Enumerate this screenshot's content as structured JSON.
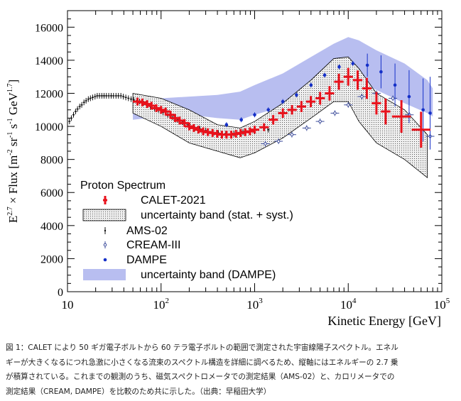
{
  "chart_data": {
    "type": "scatter",
    "x_scale": "log",
    "xlim": [
      10,
      100000
    ],
    "ylim": [
      0,
      17000
    ],
    "xlabel": "Kinetic Energy [GeV]",
    "ylabel": "E^2.7 × Flux [m^-2 sr^-1 s^-1 GeV^1.7]",
    "ylabel_parts": {
      "a": "E",
      "a_sup": "2.7",
      "b": " × Flux [m",
      "b_sup": "-2",
      "c": " sr",
      "c_sup": "-1",
      "d": " s",
      "d_sup": "-1",
      "e": " GeV",
      "e_sup": "1.7",
      "f": "]"
    },
    "x_ticks": [
      {
        "value": 10,
        "base": "10",
        "exp": ""
      },
      {
        "value": 100,
        "base": "10",
        "exp": "2"
      },
      {
        "value": 1000,
        "base": "10",
        "exp": "3"
      },
      {
        "value": 10000,
        "base": "10",
        "exp": "4"
      },
      {
        "value": 100000,
        "base": "10",
        "exp": "5"
      }
    ],
    "y_ticks": [
      0,
      2000,
      4000,
      6000,
      8000,
      10000,
      12000,
      14000,
      16000
    ],
    "legend": {
      "title": "Proton Spectrum",
      "placement": "bottom-left",
      "entries": [
        "CALET-2021",
        "uncertainty band (stat. + syst.)",
        "AMS-02",
        "CREAM-III",
        "DAMPE",
        "uncertainty band (DAMPE)"
      ]
    },
    "colors": {
      "calet": "#e8121c",
      "calet_band": "#d8d8d8",
      "ams": "#111111",
      "cream": "#3a4a9a",
      "dampe": "#1530c8",
      "dampe_band": "#b8bef0"
    },
    "dampe_band": {
      "x": [
        50,
        100,
        200,
        400,
        700,
        1000,
        2000,
        4000,
        7000,
        10000,
        13000,
        20000,
        40000,
        70000,
        80000
      ],
      "upper": [
        11300,
        11700,
        11800,
        11900,
        12100,
        12500,
        13200,
        14200,
        15000,
        15400,
        15200,
        14600,
        13800,
        12800,
        12300
      ],
      "lower": [
        10400,
        10600,
        10700,
        10500,
        10400,
        10700,
        11200,
        12100,
        12800,
        13000,
        12700,
        12200,
        11400,
        10800,
        10600
      ]
    },
    "calet_band": {
      "x": [
        50,
        100,
        200,
        400,
        700,
        1000,
        2000,
        4000,
        7000,
        10000,
        13000,
        20000,
        40000,
        70000
      ],
      "upper": [
        12000,
        11700,
        11000,
        10100,
        9900,
        10300,
        11400,
        12800,
        14100,
        14200,
        13500,
        12000,
        11000,
        9500
      ],
      "lower": [
        10800,
        10000,
        9000,
        8500,
        8100,
        8400,
        9300,
        10500,
        11500,
        11500,
        10300,
        9000,
        8000,
        6900
      ]
    },
    "series": [
      {
        "name": "CALET-2021",
        "points": [
          {
            "x": 56,
            "y": 11500,
            "xerr": 0.05,
            "yerr": 150
          },
          {
            "x": 63,
            "y": 11450,
            "xerr": 0.05,
            "yerr": 150
          },
          {
            "x": 71,
            "y": 11350,
            "xerr": 0.05,
            "yerr": 150
          },
          {
            "x": 79,
            "y": 11250,
            "xerr": 0.05,
            "yerr": 150
          },
          {
            "x": 89,
            "y": 11100,
            "xerr": 0.05,
            "yerr": 150
          },
          {
            "x": 100,
            "y": 11000,
            "xerr": 0.05,
            "yerr": 150
          },
          {
            "x": 112,
            "y": 10900,
            "xerr": 0.05,
            "yerr": 150
          },
          {
            "x": 126,
            "y": 10700,
            "xerr": 0.05,
            "yerr": 150
          },
          {
            "x": 141,
            "y": 10500,
            "xerr": 0.05,
            "yerr": 150
          },
          {
            "x": 158,
            "y": 10350,
            "xerr": 0.05,
            "yerr": 150
          },
          {
            "x": 178,
            "y": 10200,
            "xerr": 0.05,
            "yerr": 150
          },
          {
            "x": 200,
            "y": 10000,
            "xerr": 0.05,
            "yerr": 150
          },
          {
            "x": 224,
            "y": 9900,
            "xerr": 0.05,
            "yerr": 150
          },
          {
            "x": 251,
            "y": 9800,
            "xerr": 0.05,
            "yerr": 150
          },
          {
            "x": 282,
            "y": 9700,
            "xerr": 0.05,
            "yerr": 150
          },
          {
            "x": 316,
            "y": 9650,
            "xerr": 0.05,
            "yerr": 150
          },
          {
            "x": 355,
            "y": 9600,
            "xerr": 0.05,
            "yerr": 150
          },
          {
            "x": 398,
            "y": 9550,
            "xerr": 0.05,
            "yerr": 150
          },
          {
            "x": 447,
            "y": 9500,
            "xerr": 0.05,
            "yerr": 150
          },
          {
            "x": 501,
            "y": 9500,
            "xerr": 0.05,
            "yerr": 150
          },
          {
            "x": 562,
            "y": 9500,
            "xerr": 0.05,
            "yerr": 150
          },
          {
            "x": 631,
            "y": 9550,
            "xerr": 0.05,
            "yerr": 150
          },
          {
            "x": 708,
            "y": 9600,
            "xerr": 0.05,
            "yerr": 150
          },
          {
            "x": 794,
            "y": 9650,
            "xerr": 0.05,
            "yerr": 150
          },
          {
            "x": 891,
            "y": 9700,
            "xerr": 0.05,
            "yerr": 150
          },
          {
            "x": 1000,
            "y": 9800,
            "xerr": 0.05,
            "yerr": 150
          },
          {
            "x": 1260,
            "y": 9950,
            "xerr": 0.05,
            "yerr": 150
          },
          {
            "x": 1580,
            "y": 10400,
            "xerr": 0.05,
            "yerr": 200
          },
          {
            "x": 2000,
            "y": 10800,
            "xerr": 0.05,
            "yerr": 200
          },
          {
            "x": 2510,
            "y": 11000,
            "xerr": 0.05,
            "yerr": 200
          },
          {
            "x": 3160,
            "y": 11200,
            "xerr": 0.05,
            "yerr": 250
          },
          {
            "x": 3980,
            "y": 11500,
            "xerr": 0.05,
            "yerr": 250
          },
          {
            "x": 5010,
            "y": 11700,
            "xerr": 0.05,
            "yerr": 300
          },
          {
            "x": 6310,
            "y": 12000,
            "xerr": 0.05,
            "yerr": 350
          },
          {
            "x": 7940,
            "y": 12700,
            "xerr": 0.05,
            "yerr": 400
          },
          {
            "x": 10000,
            "y": 13000,
            "xerr": 0.05,
            "yerr": 450
          },
          {
            "x": 12600,
            "y": 12800,
            "xerr": 0.05,
            "yerr": 500
          },
          {
            "x": 15800,
            "y": 12300,
            "xerr": 0.05,
            "yerr": 550
          },
          {
            "x": 20000,
            "y": 11400,
            "xerr": 0.05,
            "yerr": 600
          },
          {
            "x": 25100,
            "y": 10900,
            "xerr": 0.05,
            "yerr": 700
          },
          {
            "x": 37000,
            "y": 10600,
            "xerr": 0.1,
            "yerr": 900
          },
          {
            "x": 60000,
            "y": 9800,
            "xerr": 0.1,
            "yerr": 1000
          }
        ]
      },
      {
        "name": "AMS-02",
        "points": [
          {
            "x": 10.5,
            "y": 10300
          },
          {
            "x": 11,
            "y": 10500
          },
          {
            "x": 11.6,
            "y": 10700
          },
          {
            "x": 12.2,
            "y": 10900
          },
          {
            "x": 12.8,
            "y": 11050
          },
          {
            "x": 13.5,
            "y": 11200
          },
          {
            "x": 14.2,
            "y": 11300
          },
          {
            "x": 15,
            "y": 11450
          },
          {
            "x": 15.8,
            "y": 11550
          },
          {
            "x": 16.7,
            "y": 11650
          },
          {
            "x": 17.6,
            "y": 11700
          },
          {
            "x": 18.6,
            "y": 11750
          },
          {
            "x": 19.7,
            "y": 11800
          },
          {
            "x": 20.8,
            "y": 11850
          },
          {
            "x": 22,
            "y": 11850
          },
          {
            "x": 23.3,
            "y": 11850
          },
          {
            "x": 24.6,
            "y": 11850
          },
          {
            "x": 26,
            "y": 11850
          },
          {
            "x": 27.6,
            "y": 11850
          },
          {
            "x": 29.3,
            "y": 11850
          },
          {
            "x": 31,
            "y": 11850
          },
          {
            "x": 33,
            "y": 11850
          },
          {
            "x": 35,
            "y": 11850
          },
          {
            "x": 37.2,
            "y": 11850
          },
          {
            "x": 39.5,
            "y": 11800
          },
          {
            "x": 42,
            "y": 11750
          },
          {
            "x": 44.8,
            "y": 11700
          },
          {
            "x": 47.8,
            "y": 11650
          },
          {
            "x": 51,
            "y": 11600
          },
          {
            "x": 55,
            "y": 11550
          },
          {
            "x": 59,
            "y": 11500
          },
          {
            "x": 64,
            "y": 11400
          },
          {
            "x": 70,
            "y": 11300
          },
          {
            "x": 77,
            "y": 11200
          },
          {
            "x": 85,
            "y": 11100
          },
          {
            "x": 94,
            "y": 11000
          },
          {
            "x": 105,
            "y": 10850
          },
          {
            "x": 118,
            "y": 10700
          },
          {
            "x": 133,
            "y": 10550
          },
          {
            "x": 150,
            "y": 10400
          },
          {
            "x": 170,
            "y": 10250
          },
          {
            "x": 195,
            "y": 10100
          },
          {
            "x": 225,
            "y": 9950
          },
          {
            "x": 260,
            "y": 9850
          },
          {
            "x": 300,
            "y": 9750
          },
          {
            "x": 350,
            "y": 9650
          },
          {
            "x": 410,
            "y": 9600
          },
          {
            "x": 490,
            "y": 9550
          },
          {
            "x": 600,
            "y": 9550
          },
          {
            "x": 750,
            "y": 9650
          },
          {
            "x": 1000,
            "y": 9700
          },
          {
            "x": 1400,
            "y": 9800
          }
        ]
      },
      {
        "name": "CREAM-III",
        "points": [
          {
            "x": 1300,
            "y": 8950
          },
          {
            "x": 1800,
            "y": 9100
          },
          {
            "x": 2500,
            "y": 9500
          },
          {
            "x": 3600,
            "y": 9900
          },
          {
            "x": 5000,
            "y": 10300
          },
          {
            "x": 7200,
            "y": 10800
          },
          {
            "x": 10000,
            "y": 11300
          },
          {
            "x": 14000,
            "y": 11800
          },
          {
            "x": 20000,
            "y": 12000
          },
          {
            "x": 30000,
            "y": 11700
          },
          {
            "x": 45000,
            "y": 10700
          },
          {
            "x": 75000,
            "y": 9400
          }
        ]
      },
      {
        "name": "DAMPE",
        "points": [
          {
            "x": 500,
            "y": 10100
          },
          {
            "x": 720,
            "y": 10400
          },
          {
            "x": 1000,
            "y": 10700
          },
          {
            "x": 1400,
            "y": 11000
          },
          {
            "x": 2000,
            "y": 11500
          },
          {
            "x": 2800,
            "y": 11900
          },
          {
            "x": 4000,
            "y": 12500
          },
          {
            "x": 5600,
            "y": 13100
          },
          {
            "x": 8000,
            "y": 13600
          },
          {
            "x": 11200,
            "y": 13800
          },
          {
            "x": 16000,
            "y": 13700
          },
          {
            "x": 22400,
            "y": 13300
          },
          {
            "x": 31600,
            "y": 12500
          },
          {
            "x": 44700,
            "y": 11800
          },
          {
            "x": 63100,
            "y": 11000
          },
          {
            "x": 75000,
            "y": 10800
          }
        ]
      }
    ]
  },
  "caption": {
    "lines": [
      "図 1：CALET により 50 ギガ電子ボルトから 60 テラ電子ボルトの範囲で測定された宇宙線陽子スペクトル。エネル",
      "ギーが大きくなるにつれ急激に小さくなる流束のスペクトル構造を詳細に調べるため、縦軸にはエネルギーの 2.7 乗",
      "が積算されている。これまでの観測のうち、磁気スペクトロメータでの測定結果（AMS-02）と、カロリメータでの",
      "測定結果（CREAM, DAMPE）を比較のため共に示した。（出典：早稲田大学）"
    ]
  }
}
